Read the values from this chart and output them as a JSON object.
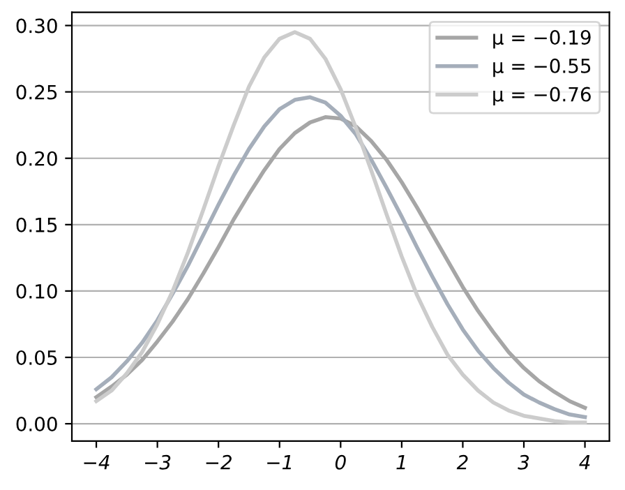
{
  "chart_data": {
    "type": "line",
    "x": [
      -4,
      -3.75,
      -3.5,
      -3.25,
      -3,
      -2.75,
      -2.5,
      -2.25,
      -2,
      -1.75,
      -1.5,
      -1.25,
      -1,
      -0.75,
      -0.5,
      -0.25,
      0,
      0.25,
      0.5,
      0.75,
      1,
      1.25,
      1.5,
      1.75,
      2,
      2.25,
      2.5,
      2.75,
      3,
      3.25,
      3.5,
      3.75,
      4
    ],
    "series": [
      {
        "name": "μ = −0.19",
        "color": "#a6a6a6",
        "values": [
          0.02,
          0.028,
          0.037,
          0.048,
          0.062,
          0.077,
          0.094,
          0.113,
          0.133,
          0.154,
          0.173,
          0.191,
          0.207,
          0.219,
          0.227,
          0.231,
          0.23,
          0.224,
          0.213,
          0.199,
          0.182,
          0.163,
          0.143,
          0.123,
          0.103,
          0.085,
          0.069,
          0.054,
          0.042,
          0.032,
          0.024,
          0.017,
          0.012
        ]
      },
      {
        "name": "μ = −0.55",
        "color": "#a5aeba",
        "values": [
          0.026,
          0.035,
          0.047,
          0.061,
          0.078,
          0.098,
          0.119,
          0.142,
          0.165,
          0.187,
          0.207,
          0.224,
          0.237,
          0.244,
          0.246,
          0.242,
          0.232,
          0.218,
          0.199,
          0.178,
          0.156,
          0.133,
          0.111,
          0.09,
          0.071,
          0.055,
          0.042,
          0.031,
          0.022,
          0.016,
          0.011,
          0.007,
          0.005
        ]
      },
      {
        "name": "μ = −0.76",
        "color": "#cccccc",
        "values": [
          0.017,
          0.025,
          0.038,
          0.054,
          0.075,
          0.1,
          0.129,
          0.161,
          0.194,
          0.225,
          0.254,
          0.276,
          0.29,
          0.295,
          0.29,
          0.275,
          0.252,
          0.223,
          0.191,
          0.158,
          0.126,
          0.097,
          0.073,
          0.052,
          0.037,
          0.025,
          0.016,
          0.01,
          0.006,
          0.004,
          0.002,
          0.001,
          0.001
        ]
      }
    ],
    "xlim": [
      -4.4,
      4.4
    ],
    "xticks": [
      {
        "value": -4,
        "label": "−4"
      },
      {
        "value": -3,
        "label": "−3"
      },
      {
        "value": -2,
        "label": "−2"
      },
      {
        "value": -1,
        "label": "−1"
      },
      0,
      1,
      2,
      3,
      4
    ],
    "ylim": [
      -0.013,
      0.31
    ],
    "yticks": [
      {
        "value": 0,
        "label": "0.00"
      },
      {
        "value": 0.05,
        "label": "0.05"
      },
      {
        "value": 0.1,
        "label": "0.10"
      },
      {
        "value": 0.15,
        "label": "0.15"
      },
      {
        "value": 0.2,
        "label": "0.20"
      },
      {
        "value": 0.25,
        "label": "0.25"
      },
      {
        "value": 0.3,
        "label": "0.30"
      }
    ],
    "grid": "y",
    "legend": "top right",
    "line_style": "solid",
    "marker": "none"
  }
}
